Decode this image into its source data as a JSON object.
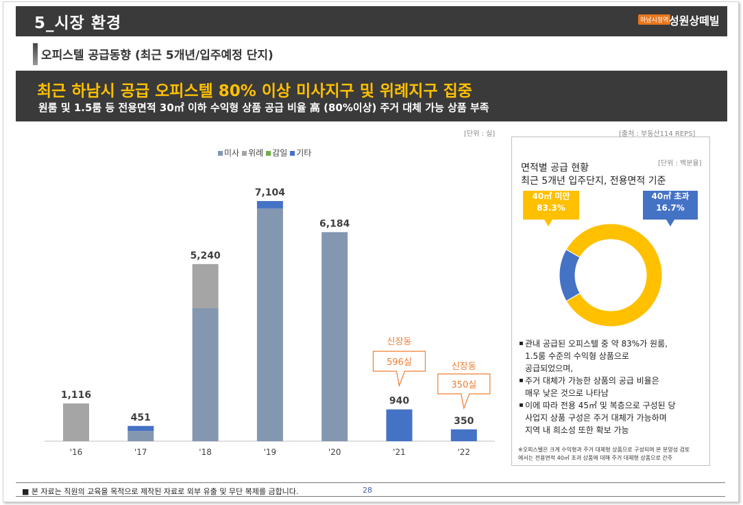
{
  "header": {
    "title": "5_시장 환경",
    "brand_badge": "하남시청역",
    "brand_name": "성원상떼빌"
  },
  "section": {
    "title": "오피스텔 공급동향 (최근 5개년/입주예정 단지)"
  },
  "headline": {
    "main": "최근 하남시 공급 오피스텔 80% 이상 미사지구 및 위례지구 집중",
    "sub": "원룸 및 1.5룸 등 전용면적 30㎡ 이하 수익형 상품 공급 비율 高 (80%이상) 주거 대체 가능 상품 부족"
  },
  "notes": {
    "unit_left": "[단위 : 실]",
    "source": "[출처 : 부동산114 REPS]",
    "unit_right": "[단위 :  백분율]"
  },
  "chart_data": [
    {
      "type": "bar",
      "stacked": true,
      "categories": [
        "'16",
        "'17",
        "'18",
        "'19",
        "'20",
        "'21",
        "'22"
      ],
      "series": [
        {
          "name": "미사",
          "color": "#8497b0",
          "values": [
            0,
            301,
            3940,
            6884,
            6184,
            0,
            0
          ]
        },
        {
          "name": "위례",
          "color": "#a5a5a5",
          "values": [
            1116,
            0,
            1300,
            0,
            0,
            0,
            0
          ]
        },
        {
          "name": "감일",
          "color": "#70ad47",
          "values": [
            0,
            0,
            0,
            0,
            0,
            0,
            0
          ]
        },
        {
          "name": "기타",
          "color": "#4472c4",
          "values": [
            0,
            150,
            0,
            220,
            0,
            940,
            350
          ]
        }
      ],
      "totals": [
        "1,116",
        "451",
        "5,240",
        "7,104",
        "6,184",
        "940",
        "350"
      ],
      "annotations": [
        {
          "category": "'21",
          "area": "신장동",
          "count": "596실"
        },
        {
          "category": "'22",
          "area": "신장동",
          "count": "350실"
        }
      ],
      "legend": "top",
      "ylim": [
        0,
        7104
      ]
    },
    {
      "type": "pie",
      "donut": true,
      "labels": [
        "40㎡ 미만",
        "40㎡ 초과"
      ],
      "values": [
        83.3,
        16.7
      ],
      "value_labels": [
        "83.3%",
        "16.7%"
      ],
      "colors": [
        "#ffc000",
        "#4472c4"
      ],
      "title_lines": [
        "면적별 공급 현황",
        "최근 5개년 입주단지, 전용면적 기준"
      ]
    }
  ],
  "panel": {
    "bullets": [
      [
        "관내 공급된 오피스텔 중 약 83%가 원룸,",
        "1.5룸 수준의 수익형 상품으로",
        "공급되었으며,"
      ],
      [
        "주거 대체가 가능한 상품의 공급 비율은",
        "매우 낮은 것으로 나타남"
      ],
      [
        "이에 따라 전용 45㎡ 및 복층으로 구성된 당",
        "사업지 상품 구성은 주거 대체가 가능하며",
        "지역 내 희소성 또한 확보 가능"
      ]
    ],
    "footnote": [
      "※오피스텔은 크게 수익형과 주거 대체형 상품으로 구성되며 본 분양성 검토",
      "에서는 전용면적 40㎡ 초과 상품에 대해 주거 대체형 상품으로 간주"
    ]
  },
  "footer": {
    "disclaimer": "■  본 자료는 직원의 교육을 목적으로 제작된 자료로 외부 유출 및 무단 복제를 금합니다.",
    "page": "28"
  }
}
